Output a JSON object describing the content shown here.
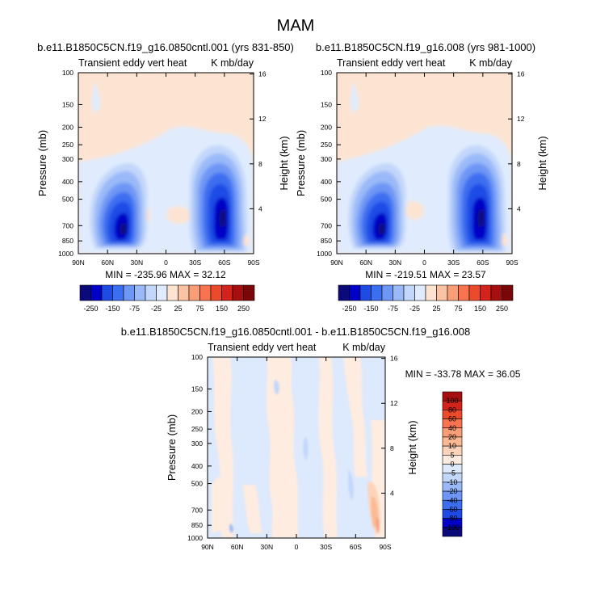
{
  "figure": {
    "title": "MAM"
  },
  "chart_data": [
    {
      "type": "heatmap",
      "title": "b.e11.B1850C5CN.f19_g16.0850cntl.001 (yrs 831-850)",
      "left_label": "Transient eddy vert heat",
      "right_label": "K mb/day",
      "ylabel": "Pressure (mb)",
      "ylabel_right": "Height (km)",
      "xticks": [
        "90N",
        "60N",
        "30N",
        "0",
        "30S",
        "60S",
        "90S"
      ],
      "yticks": [
        "100",
        "150",
        "200",
        "250",
        "300",
        "400",
        "500",
        "700",
        "850",
        "1000"
      ],
      "yticks_right": [
        "16",
        "12",
        "8",
        "4"
      ],
      "stats": "MIN = -235.96  MAX = 32.12",
      "colorbar": {
        "orientation": "horizontal",
        "labels": [
          "-250",
          "-150",
          "-75",
          "-25",
          "25",
          "75",
          "150",
          "250"
        ],
        "colors": [
          "#0a0a7a",
          "#0000c8",
          "#1e4be6",
          "#3c6ef0",
          "#6e96f5",
          "#9ab9f8",
          "#c3d7fb",
          "#e0ecfd",
          "#fde4d2",
          "#fcc3a3",
          "#fb9e78",
          "#f87350",
          "#ec4a2c",
          "#d3231b",
          "#a50f0f",
          "#7a0707"
        ]
      }
    },
    {
      "type": "heatmap",
      "title": "b.e11.B1850C5CN.f19_g16.008 (yrs 981-1000)",
      "left_label": "Transient eddy vert heat",
      "right_label": "K mb/day",
      "ylabel": "Pressure (mb)",
      "ylabel_right": "Height (km)",
      "xticks": [
        "90N",
        "60N",
        "30N",
        "0",
        "30S",
        "60S",
        "90S"
      ],
      "yticks": [
        "100",
        "150",
        "200",
        "250",
        "300",
        "400",
        "500",
        "700",
        "850",
        "1000"
      ],
      "yticks_right": [
        "16",
        "12",
        "8",
        "4"
      ],
      "stats": "MIN = -219.51  MAX = 23.57",
      "colorbar": {
        "orientation": "horizontal",
        "labels": [
          "-250",
          "-150",
          "-75",
          "-25",
          "25",
          "75",
          "150",
          "250"
        ],
        "colors": [
          "#0a0a7a",
          "#0000c8",
          "#1e4be6",
          "#3c6ef0",
          "#6e96f5",
          "#9ab9f8",
          "#c3d7fb",
          "#e0ecfd",
          "#fde4d2",
          "#fcc3a3",
          "#fb9e78",
          "#f87350",
          "#ec4a2c",
          "#d3231b",
          "#a50f0f",
          "#7a0707"
        ]
      }
    },
    {
      "type": "heatmap",
      "title": "b.e11.B1850C5CN.f19_g16.0850cntl.001 - b.e11.B1850C5CN.f19_g16.008",
      "left_label": "Transient eddy vert heat",
      "right_label": "K mb/day",
      "ylabel": "Pressure (mb)",
      "ylabel_right": "Height (km)",
      "xticks": [
        "90N",
        "60N",
        "30N",
        "0",
        "30S",
        "60S",
        "90S"
      ],
      "yticks": [
        "100",
        "150",
        "200",
        "250",
        "300",
        "400",
        "500",
        "700",
        "850",
        "1000"
      ],
      "yticks_right": [
        "16",
        "12",
        "8",
        "4"
      ],
      "stats": "MIN = -33.78  MAX = 36.05",
      "colorbar": {
        "orientation": "vertical",
        "labels": [
          "100",
          "80",
          "60",
          "40",
          "20",
          "10",
          "5",
          "0",
          "-5",
          "-10",
          "-20",
          "-40",
          "-60",
          "-80",
          "-100"
        ],
        "colors": [
          "#a50f0f",
          "#d3231b",
          "#ec4a2c",
          "#f87350",
          "#fb9e78",
          "#fcb994",
          "#fdd3ba",
          "#feece0",
          "#dde9fc",
          "#c3d7fb",
          "#9ab9f8",
          "#6e96f5",
          "#3c6ef0",
          "#1e4be6",
          "#0000c8",
          "#0a0a7a"
        ]
      }
    }
  ]
}
